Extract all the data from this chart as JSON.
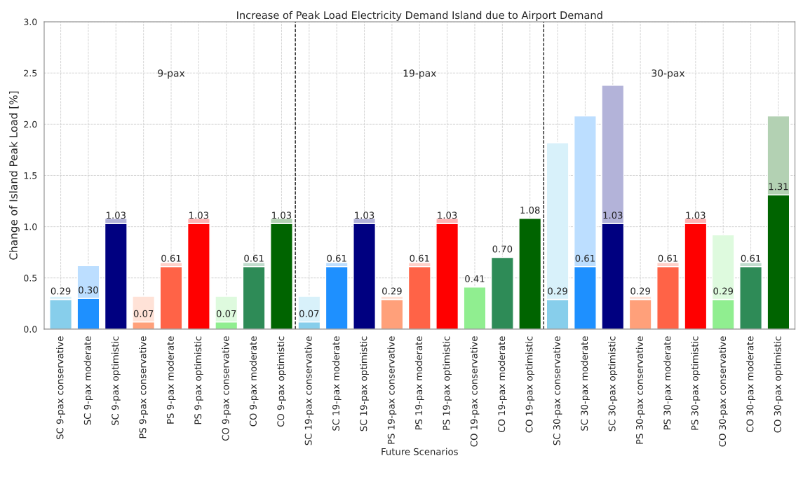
{
  "chart_data": {
    "type": "bar",
    "title": "Increase of Peak Load Electricity Demand Island due to Airport Demand",
    "xlabel": "Future Scenarios",
    "ylabel": "Change of Island Peak Load [%]",
    "categories": [
      "SC 9-pax conservative",
      "SC 9-pax moderate",
      "SC 9-pax optimistic",
      "PS 9-pax conservative",
      "PS 9-pax moderate",
      "PS 9-pax optimistic",
      "CO 9-pax conservative",
      "CO 9-pax moderate",
      "CO 9-pax optimistic",
      "SC 19-pax conservative",
      "SC 19-pax moderate",
      "SC 19-pax optimistic",
      "PS 19-pax conservative",
      "PS 19-pax moderate",
      "PS 19-pax optimistic",
      "CO 19-pax conservative",
      "CO 19-pax moderate",
      "CO 19-pax optimistic",
      "SC 30-pax conservative",
      "SC 30-pax moderate",
      "SC 30-pax optimistic",
      "PS 30-pax conservative",
      "PS 30-pax moderate",
      "PS 30-pax optimistic",
      "CO 30-pax conservative",
      "CO 30-pax moderate",
      "CO 30-pax optimistic"
    ],
    "stacked": true,
    "series": [
      {
        "values": [
          0.29,
          0.3,
          1.03,
          0.07,
          0.61,
          1.03,
          0.07,
          0.61,
          1.03,
          0.07,
          0.61,
          1.03,
          0.29,
          0.61,
          1.03,
          0.41,
          0.7,
          1.08,
          0.29,
          0.61,
          1.03,
          0.29,
          0.61,
          1.03,
          0.29,
          0.61,
          1.31
        ],
        "colors": [
          "#87ceeb",
          "#1e90ff",
          "#000080",
          "#ffa07a",
          "#ff6347",
          "#ff0000",
          "#90ee90",
          "#2e8b57",
          "#006400",
          "#87ceeb",
          "#1e90ff",
          "#000080",
          "#ffa07a",
          "#ff6347",
          "#ff0000",
          "#90ee90",
          "#2e8b57",
          "#006400",
          "#87ceeb",
          "#1e90ff",
          "#000080",
          "#ffa07a",
          "#ff6347",
          "#ff0000",
          "#90ee90",
          "#2e8b57",
          "#006400"
        ],
        "value_labels": [
          "0.29",
          "0.30",
          "1.03",
          "0.07",
          "0.61",
          "1.03",
          "0.07",
          "0.61",
          "1.03",
          "0.07",
          "0.61",
          "1.03",
          "0.29",
          "0.61",
          "1.03",
          "0.41",
          "0.70",
          "1.08",
          "0.29",
          "0.61",
          "1.03",
          "0.29",
          "0.61",
          "1.03",
          "0.29",
          "0.61",
          "1.31"
        ]
      },
      {
        "values": [
          0.03,
          0.32,
          0.05,
          0.25,
          0.04,
          0.05,
          0.25,
          0.04,
          0.05,
          0.25,
          0.04,
          0.05,
          0.03,
          0.04,
          0.05,
          null,
          null,
          null,
          1.53,
          1.47,
          1.35,
          0.03,
          0.04,
          0.05,
          0.63,
          0.04,
          0.77
        ],
        "colors": [
          "#d8f1fa",
          "#bcdeff",
          "#b3b3d9",
          "#ffe2d7",
          "#ffd0c8",
          "#ffb3b3",
          "#defade",
          "#c1dccd",
          "#b3d1b3",
          "#d8f1fa",
          "#bcdeff",
          "#b3b3d9",
          "#ffe2d7",
          "#ffd0c8",
          "#ffb3b3",
          "#defade",
          "#c1dccd",
          "#b3d1b3",
          "#d8f1fa",
          "#bcdeff",
          "#b3b3d9",
          "#ffe2d7",
          "#ffd0c8",
          "#ffb3b3",
          "#defade",
          "#c1dccd",
          "#b3d1b3"
        ]
      }
    ],
    "ylim": [
      0,
      3
    ],
    "yticks": [
      {
        "value": 0,
        "label": "0.0"
      },
      {
        "value": 0.5,
        "label": "0.5"
      },
      {
        "value": 1,
        "label": "1.0"
      },
      {
        "value": 1.5,
        "label": "1.5"
      },
      {
        "value": 2,
        "label": "2.0"
      },
      {
        "value": 2.5,
        "label": "2.5"
      },
      {
        "value": 3,
        "label": "3.0"
      }
    ],
    "annotations": [
      "9-pax",
      "19-pax",
      "30-pax"
    ],
    "grid": true
  }
}
